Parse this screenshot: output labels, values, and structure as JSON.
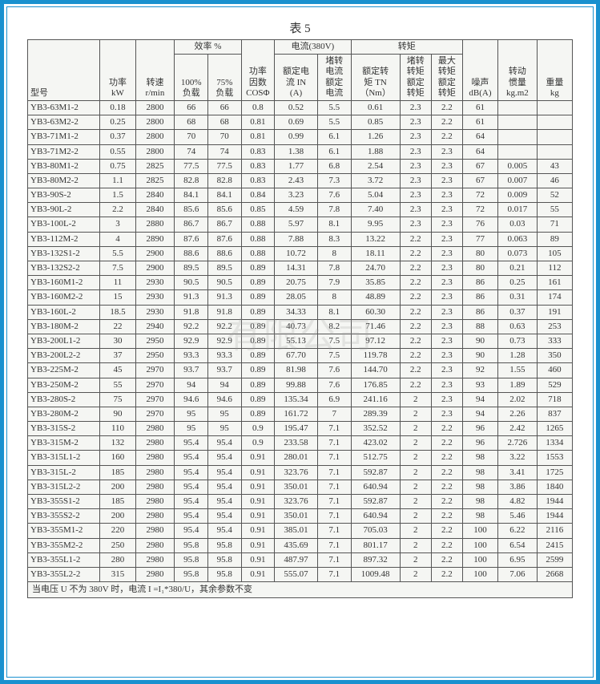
{
  "title": "表 5",
  "watermark_text": "有限公司",
  "footnote": "当电压 U 不为 380V 时，电流 I =I₁*380/U，其余参数不变",
  "header": {
    "group_efficiency": "效率 %",
    "group_current": "电流(380V)",
    "group_torque": "转矩",
    "model": "型号",
    "power": "功率",
    "power_unit": "kW",
    "speed": "转速",
    "speed_unit": "r/min",
    "eff_100_l1": "100%",
    "eff_100_l2": "负载",
    "eff_75_l1": "75%",
    "eff_75_l2": "负载",
    "pf_l1": "功率",
    "pf_l2": "因数",
    "pf_l3": "COSΦ",
    "rated_current_l1": "额定电",
    "rated_current_l2": "流 IN",
    "rated_current_l3": "(A)",
    "stall_current_l1": "堵转",
    "stall_current_l2": "电流",
    "stall_current_l3": "额定",
    "stall_current_l4": "电流",
    "rated_torque_l1": "额定转",
    "rated_torque_l2": "矩 TN",
    "rated_torque_l3": "（Nm）",
    "stall_torque_l1": "堵转",
    "stall_torque_l2": "转矩",
    "stall_torque_l3": "额定",
    "stall_torque_l4": "转矩",
    "max_torque_l1": "最大",
    "max_torque_l2": "转矩",
    "max_torque_l3": "额定",
    "max_torque_l4": "转矩",
    "noise_l1": "噪声",
    "noise_l2": "dB(A)",
    "inertia_l1": "转动",
    "inertia_l2": "惯量",
    "inertia_l3": "kg.m2",
    "weight_l1": "重量",
    "weight_l2": "kg"
  },
  "rows": [
    [
      "YB3-63M1-2",
      "0.18",
      "2800",
      "66",
      "66",
      "0.8",
      "0.52",
      "5.5",
      "0.61",
      "2.3",
      "2.2",
      "61",
      "",
      ""
    ],
    [
      "YB3-63M2-2",
      "0.25",
      "2800",
      "68",
      "68",
      "0.81",
      "0.69",
      "5.5",
      "0.85",
      "2.3",
      "2.2",
      "61",
      "",
      ""
    ],
    [
      "YB3-71M1-2",
      "0.37",
      "2800",
      "70",
      "70",
      "0.81",
      "0.99",
      "6.1",
      "1.26",
      "2.3",
      "2.2",
      "64",
      "",
      ""
    ],
    [
      "YB3-71M2-2",
      "0.55",
      "2800",
      "74",
      "74",
      "0.83",
      "1.38",
      "6.1",
      "1.88",
      "2.3",
      "2.3",
      "64",
      "",
      ""
    ],
    [
      "YB3-80M1-2",
      "0.75",
      "2825",
      "77.5",
      "77.5",
      "0.83",
      "1.77",
      "6.8",
      "2.54",
      "2.3",
      "2.3",
      "67",
      "0.005",
      "43"
    ],
    [
      "YB3-80M2-2",
      "1.1",
      "2825",
      "82.8",
      "82.8",
      "0.83",
      "2.43",
      "7.3",
      "3.72",
      "2.3",
      "2.3",
      "67",
      "0.007",
      "46"
    ],
    [
      "YB3-90S-2",
      "1.5",
      "2840",
      "84.1",
      "84.1",
      "0.84",
      "3.23",
      "7.6",
      "5.04",
      "2.3",
      "2.3",
      "72",
      "0.009",
      "52"
    ],
    [
      "YB3-90L-2",
      "2.2",
      "2840",
      "85.6",
      "85.6",
      "0.85",
      "4.59",
      "7.8",
      "7.40",
      "2.3",
      "2.3",
      "72",
      "0.017",
      "55"
    ],
    [
      "YB3-100L-2",
      "3",
      "2880",
      "86.7",
      "86.7",
      "0.88",
      "5.97",
      "8.1",
      "9.95",
      "2.3",
      "2.3",
      "76",
      "0.03",
      "71"
    ],
    [
      "YB3-112M-2",
      "4",
      "2890",
      "87.6",
      "87.6",
      "0.88",
      "7.88",
      "8.3",
      "13.22",
      "2.2",
      "2.3",
      "77",
      "0.063",
      "89"
    ],
    [
      "YB3-132S1-2",
      "5.5",
      "2900",
      "88.6",
      "88.6",
      "0.88",
      "10.72",
      "8",
      "18.11",
      "2.2",
      "2.3",
      "80",
      "0.073",
      "105"
    ],
    [
      "YB3-132S2-2",
      "7.5",
      "2900",
      "89.5",
      "89.5",
      "0.89",
      "14.31",
      "7.8",
      "24.70",
      "2.2",
      "2.3",
      "80",
      "0.21",
      "112"
    ],
    [
      "YB3-160M1-2",
      "11",
      "2930",
      "90.5",
      "90.5",
      "0.89",
      "20.75",
      "7.9",
      "35.85",
      "2.2",
      "2.3",
      "86",
      "0.25",
      "161"
    ],
    [
      "YB3-160M2-2",
      "15",
      "2930",
      "91.3",
      "91.3",
      "0.89",
      "28.05",
      "8",
      "48.89",
      "2.2",
      "2.3",
      "86",
      "0.31",
      "174"
    ],
    [
      "YB3-160L-2",
      "18.5",
      "2930",
      "91.8",
      "91.8",
      "0.89",
      "34.33",
      "8.1",
      "60.30",
      "2.2",
      "2.3",
      "86",
      "0.37",
      "191"
    ],
    [
      "YB3-180M-2",
      "22",
      "2940",
      "92.2",
      "92.2",
      "0.89",
      "40.73",
      "8.2",
      "71.46",
      "2.2",
      "2.3",
      "88",
      "0.63",
      "253"
    ],
    [
      "YB3-200L1-2",
      "30",
      "2950",
      "92.9",
      "92.9",
      "0.89",
      "55.13",
      "7.5",
      "97.12",
      "2.2",
      "2.3",
      "90",
      "0.73",
      "333"
    ],
    [
      "YB3-200L2-2",
      "37",
      "2950",
      "93.3",
      "93.3",
      "0.89",
      "67.70",
      "7.5",
      "119.78",
      "2.2",
      "2.3",
      "90",
      "1.28",
      "350"
    ],
    [
      "YB3-225M-2",
      "45",
      "2970",
      "93.7",
      "93.7",
      "0.89",
      "81.98",
      "7.6",
      "144.70",
      "2.2",
      "2.3",
      "92",
      "1.55",
      "460"
    ],
    [
      "YB3-250M-2",
      "55",
      "2970",
      "94",
      "94",
      "0.89",
      "99.88",
      "7.6",
      "176.85",
      "2.2",
      "2.3",
      "93",
      "1.89",
      "529"
    ],
    [
      "YB3-280S-2",
      "75",
      "2970",
      "94.6",
      "94.6",
      "0.89",
      "135.34",
      "6.9",
      "241.16",
      "2",
      "2.3",
      "94",
      "2.02",
      "718"
    ],
    [
      "YB3-280M-2",
      "90",
      "2970",
      "95",
      "95",
      "0.89",
      "161.72",
      "7",
      "289.39",
      "2",
      "2.3",
      "94",
      "2.26",
      "837"
    ],
    [
      "YB3-315S-2",
      "110",
      "2980",
      "95",
      "95",
      "0.9",
      "195.47",
      "7.1",
      "352.52",
      "2",
      "2.2",
      "96",
      "2.42",
      "1265"
    ],
    [
      "YB3-315M-2",
      "132",
      "2980",
      "95.4",
      "95.4",
      "0.9",
      "233.58",
      "7.1",
      "423.02",
      "2",
      "2.2",
      "96",
      "2.726",
      "1334"
    ],
    [
      "YB3-315L1-2",
      "160",
      "2980",
      "95.4",
      "95.4",
      "0.91",
      "280.01",
      "7.1",
      "512.75",
      "2",
      "2.2",
      "98",
      "3.22",
      "1553"
    ],
    [
      "YB3-315L-2",
      "185",
      "2980",
      "95.4",
      "95.4",
      "0.91",
      "323.76",
      "7.1",
      "592.87",
      "2",
      "2.2",
      "98",
      "3.41",
      "1725"
    ],
    [
      "YB3-315L2-2",
      "200",
      "2980",
      "95.4",
      "95.4",
      "0.91",
      "350.01",
      "7.1",
      "640.94",
      "2",
      "2.2",
      "98",
      "3.86",
      "1840"
    ],
    [
      "YB3-355S1-2",
      "185",
      "2980",
      "95.4",
      "95.4",
      "0.91",
      "323.76",
      "7.1",
      "592.87",
      "2",
      "2.2",
      "98",
      "4.82",
      "1944"
    ],
    [
      "YB3-355S2-2",
      "200",
      "2980",
      "95.4",
      "95.4",
      "0.91",
      "350.01",
      "7.1",
      "640.94",
      "2",
      "2.2",
      "98",
      "5.46",
      "1944"
    ],
    [
      "YB3-355M1-2",
      "220",
      "2980",
      "95.4",
      "95.4",
      "0.91",
      "385.01",
      "7.1",
      "705.03",
      "2",
      "2.2",
      "100",
      "6.22",
      "2116"
    ],
    [
      "YB3-355M2-2",
      "250",
      "2980",
      "95.8",
      "95.8",
      "0.91",
      "435.69",
      "7.1",
      "801.17",
      "2",
      "2.2",
      "100",
      "6.54",
      "2415"
    ],
    [
      "YB3-355L1-2",
      "280",
      "2980",
      "95.8",
      "95.8",
      "0.91",
      "487.97",
      "7.1",
      "897.32",
      "2",
      "2.2",
      "100",
      "6.95",
      "2599"
    ],
    [
      "YB3-355L2-2",
      "315",
      "2980",
      "95.8",
      "95.8",
      "0.91",
      "555.07",
      "7.1",
      "1009.48",
      "2",
      "2.2",
      "100",
      "7.06",
      "2668"
    ]
  ],
  "col_widths": [
    "74",
    "36",
    "40",
    "34",
    "34",
    "34",
    "44",
    "34",
    "50",
    "32",
    "32",
    "36",
    "40",
    "36"
  ]
}
